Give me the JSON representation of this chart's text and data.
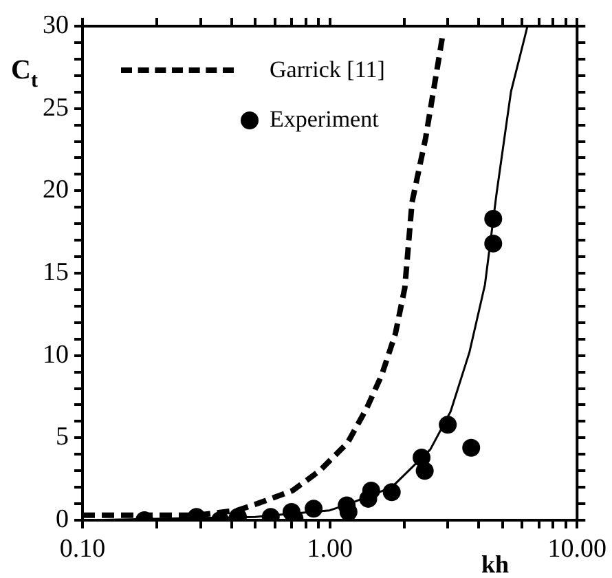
{
  "chart_data": {
    "type": "line",
    "xlabel": "kh",
    "ylabel": "C$_{t}$",
    "log": "x",
    "legend": "top left",
    "xlim": [
      0.1,
      10
    ],
    "ylim": [
      0,
      30
    ],
    "xticks": [
      {
        "value": 0.1,
        "label": "0.10"
      },
      {
        "value": 0.2,
        "label": null
      },
      {
        "value": 0.3,
        "label": null
      },
      {
        "value": 0.4,
        "label": null
      },
      {
        "value": 0.5,
        "label": null
      },
      {
        "value": 0.6,
        "label": null
      },
      {
        "value": 0.7,
        "label": null
      },
      {
        "value": 0.8,
        "label": null
      },
      {
        "value": 0.9,
        "label": null
      },
      {
        "value": 1,
        "label": "1.00"
      },
      {
        "value": 2,
        "label": null
      },
      {
        "value": 3,
        "label": null
      },
      {
        "value": 4,
        "label": null
      },
      {
        "value": 5,
        "label": null
      },
      {
        "value": 6,
        "label": null
      },
      {
        "value": 7,
        "label": null
      },
      {
        "value": 8,
        "label": null
      },
      {
        "value": 9,
        "label": null
      },
      {
        "value": 10,
        "label": "10.00"
      }
    ],
    "yticks": [
      0,
      {
        "value": 1,
        "label": null
      },
      {
        "value": 2,
        "label": null
      },
      {
        "value": 3,
        "label": null
      },
      {
        "value": 4,
        "label": null
      },
      5,
      {
        "value": 6,
        "label": null
      },
      {
        "value": 7,
        "label": null
      },
      {
        "value": 8,
        "label": null
      },
      {
        "value": 9,
        "label": null
      },
      10,
      {
        "value": 11,
        "label": null
      },
      {
        "value": 12,
        "label": null
      },
      {
        "value": 13,
        "label": null
      },
      {
        "value": 14,
        "label": null
      },
      15,
      {
        "value": 16,
        "label": null
      },
      {
        "value": 17,
        "label": null
      },
      {
        "value": 18,
        "label": null
      },
      {
        "value": 19,
        "label": null
      },
      20,
      {
        "value": 21,
        "label": null
      },
      {
        "value": 22,
        "label": null
      },
      {
        "value": 23,
        "label": null
      },
      {
        "value": 24,
        "label": null
      },
      25,
      {
        "value": 26,
        "label": null
      },
      {
        "value": 27,
        "label": null
      },
      {
        "value": 28,
        "label": null
      },
      {
        "value": 29,
        "label": null
      },
      30
    ],
    "series": [
      {
        "name": "Garrick [11]",
        "line_style": "dashed",
        "marker": "none",
        "color": "#000000",
        "x": [
          0.1,
          0.289,
          0.424,
          0.508,
          0.707,
          0.91,
          1.18,
          1.41,
          1.62,
          1.84,
          2.01,
          2.15,
          2.44,
          2.85
        ],
        "values": [
          0.3,
          0.3,
          0.6,
          1.0,
          1.8,
          3.0,
          4.7,
          6.8,
          8.8,
          11.3,
          14.1,
          19.3,
          23.2,
          29.3
        ]
      },
      {
        "name": "Experiment",
        "type": "scatter",
        "marker": "circle",
        "color": "#000000",
        "x": [
          0.178,
          0.289,
          0.36,
          0.425,
          0.577,
          0.7,
          0.72,
          0.86,
          1.17,
          1.19,
          1.43,
          1.47,
          1.78,
          2.35,
          2.42,
          3.0,
          3.73,
          4.58,
          4.58
        ],
        "values": [
          0,
          0.2,
          0,
          0.2,
          0.2,
          0.5,
          0.1,
          0.7,
          0.9,
          0.5,
          1.3,
          1.8,
          1.7,
          3.8,
          3.0,
          5.8,
          4.4,
          18.3,
          16.8
        ]
      },
      {
        "line_style": "solid",
        "marker": "none",
        "color": "#000000",
        "x": [
          0.1,
          0.5,
          0.7,
          1.0,
          1.2,
          1.78,
          2.55,
          3.08,
          3.67,
          4.24,
          4.73,
          5.4,
          6.3
        ],
        "values": [
          0,
          0.2,
          0.4,
          0.6,
          1.0,
          2.0,
          4.3,
          6.6,
          10.2,
          14.3,
          19.9,
          26,
          30
        ]
      }
    ]
  }
}
